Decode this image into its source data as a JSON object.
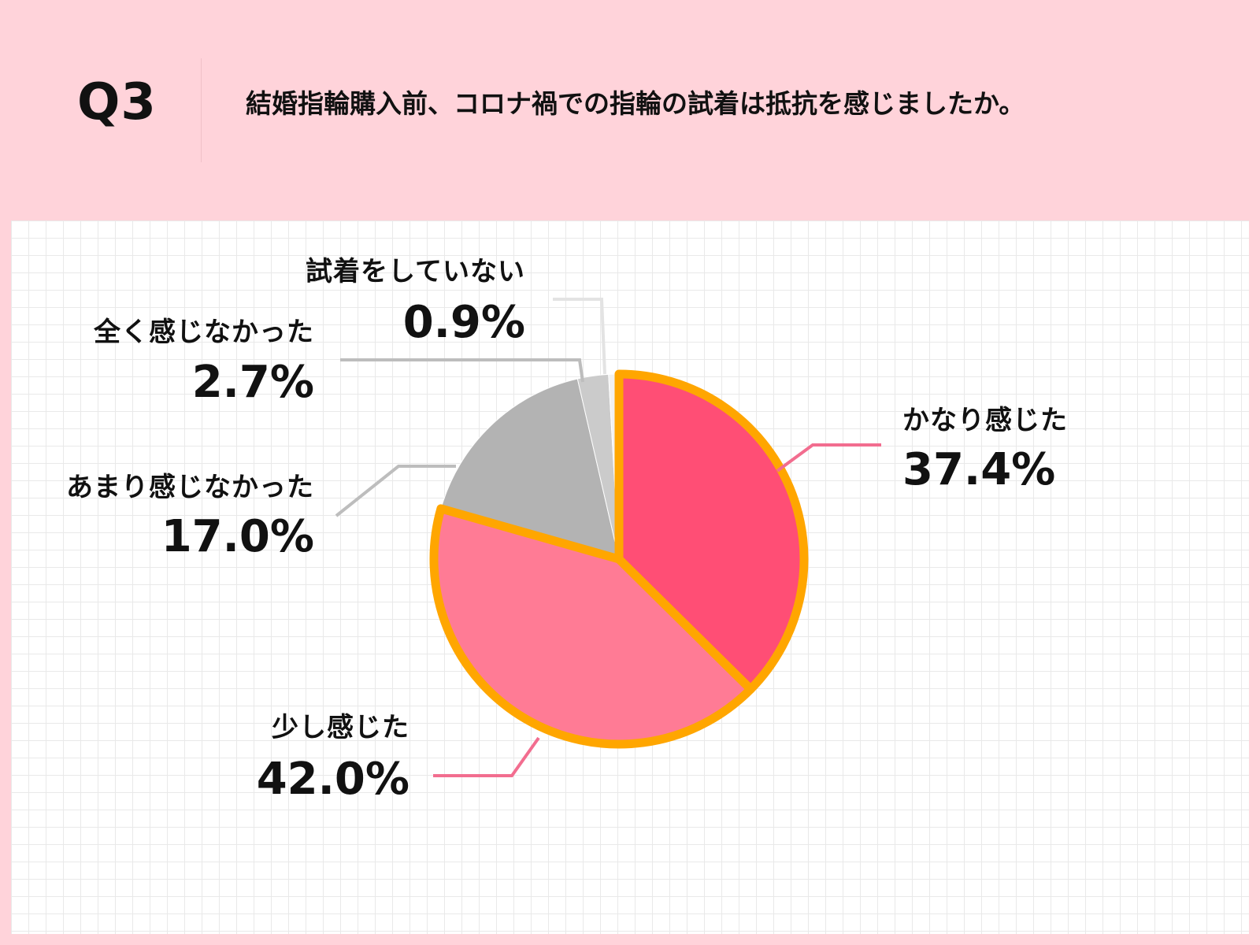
{
  "header": {
    "q_number": "Q3",
    "question": "結婚指輪購入前、コロナ禍での指輪の試着は抵抗を感じましたか。"
  },
  "colors": {
    "page_background": "#ffd3da",
    "panel_background": "#ffffff",
    "slice_outline": "#ffa600",
    "leader_pink": "#f26d8f",
    "leader_gray": "#bdbdbd",
    "leader_light": "#e3e3e3"
  },
  "chart_data": {
    "type": "pie",
    "title": "",
    "slices": [
      {
        "label": "かなり感じた",
        "value_text": "37.4%",
        "value": 37.4,
        "color": "#ff4e75",
        "highlighted": true
      },
      {
        "label": "少し感じた",
        "value_text": "42.0%",
        "value": 42.0,
        "color": "#ff7b95",
        "highlighted": true
      },
      {
        "label": "あまり感じなかった",
        "value_text": "17.0%",
        "value": 17.0,
        "color": "#b3b3b3",
        "highlighted": false
      },
      {
        "label": "全く感じなかった",
        "value_text": "2.7%",
        "value": 2.7,
        "color": "#cbcbcb",
        "highlighted": false
      },
      {
        "label": "試着をしていない",
        "value_text": "0.9%",
        "value": 0.9,
        "color": "#f1f1f1",
        "highlighted": false
      }
    ]
  }
}
